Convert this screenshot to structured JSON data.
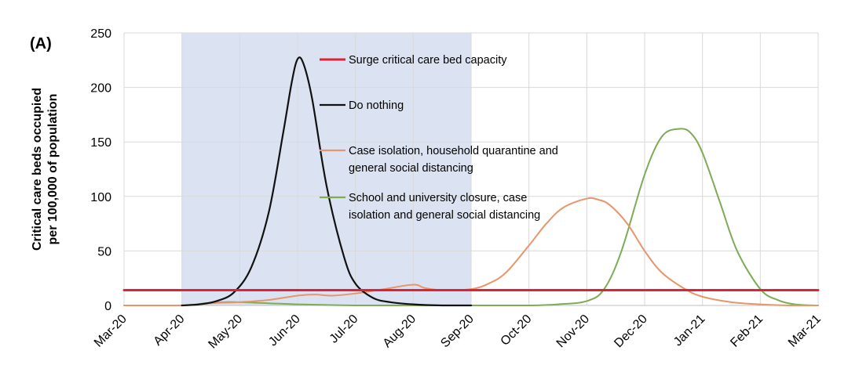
{
  "panel_label": "(A)",
  "chart_data": {
    "type": "line",
    "title": "",
    "xlabel": "",
    "ylabel": "Critical care beds occupied per 100,000 of population",
    "ylabel_lines": [
      "Critical care beds occupied",
      "per 100,000 of population"
    ],
    "ylim": [
      0,
      250
    ],
    "yticks": [
      0,
      50,
      100,
      150,
      200,
      250
    ],
    "grid": true,
    "x_categories": [
      "Mar-20",
      "Apr-20",
      "May-20",
      "Jun-20",
      "Jul-20",
      "Aug-20",
      "Sep-20",
      "Oct-20",
      "Nov-20",
      "Dec-20",
      "Jan-21",
      "Feb-21",
      "Mar-21"
    ],
    "shaded_region": {
      "from_month": 1.0,
      "to_month": 6.0,
      "color": "#dbe3f3"
    },
    "series": [
      {
        "name": "Surge critical care bed capacity",
        "legend_lines": [
          "Surge critical care bed capacity"
        ],
        "color": "#e0213a",
        "width": 3,
        "x": [
          0,
          12
        ],
        "values": [
          14,
          14
        ]
      },
      {
        "name": "Do nothing",
        "legend_lines": [
          "Do nothing"
        ],
        "color": "#111111",
        "width": 2.2,
        "x": [
          1,
          1.3,
          1.6,
          1.9,
          2.2,
          2.5,
          2.75,
          2.9,
          3.0,
          3.1,
          3.25,
          3.5,
          3.8,
          4.0,
          4.3,
          4.6,
          5.0,
          5.5,
          6.0
        ],
        "values": [
          0,
          1,
          4,
          12,
          35,
          85,
          158,
          205,
          226,
          222,
          190,
          110,
          45,
          20,
          7,
          3,
          1,
          0,
          0
        ]
      },
      {
        "name": "Case isolation, household quarantine and general social distancing",
        "legend_lines": [
          "Case isolation, household quarantine and",
          "general social distancing"
        ],
        "color": "#e8956a",
        "width": 2,
        "x": [
          0,
          1,
          1.5,
          2.0,
          2.5,
          3.0,
          3.3,
          3.6,
          4.0,
          4.5,
          5.0,
          5.2,
          5.5,
          6.0,
          6.3,
          6.6,
          7.0,
          7.3,
          7.6,
          8.0,
          8.2,
          8.4,
          8.7,
          9.0,
          9.3,
          9.7,
          10.0,
          10.5,
          11.0,
          11.5,
          12.0
        ],
        "values": [
          0,
          0,
          2,
          3,
          5,
          9,
          10,
          9,
          11,
          15,
          19,
          16,
          14,
          15,
          20,
          30,
          55,
          75,
          90,
          98,
          97,
          92,
          75,
          50,
          30,
          15,
          8,
          3,
          1,
          0,
          0
        ]
      },
      {
        "name": "School and university closure, case isolation and general social distancing",
        "legend_lines": [
          "School and university closure, case",
          "isolation and general social distancing"
        ],
        "color": "#7eab55",
        "width": 2,
        "x": [
          0,
          1.0,
          1.4,
          1.7,
          2.0,
          2.5,
          3.0,
          4.0,
          5.0,
          6.0,
          7.0,
          7.5,
          8.0,
          8.3,
          8.6,
          9.0,
          9.3,
          9.6,
          9.8,
          10.0,
          10.3,
          10.6,
          11.0,
          11.3,
          11.6,
          12.0
        ],
        "values": [
          0,
          0,
          2,
          3,
          3,
          2,
          1,
          0,
          0,
          0,
          0,
          1,
          4,
          15,
          50,
          120,
          155,
          162,
          158,
          140,
          95,
          50,
          15,
          5,
          1,
          0
        ]
      }
    ]
  }
}
